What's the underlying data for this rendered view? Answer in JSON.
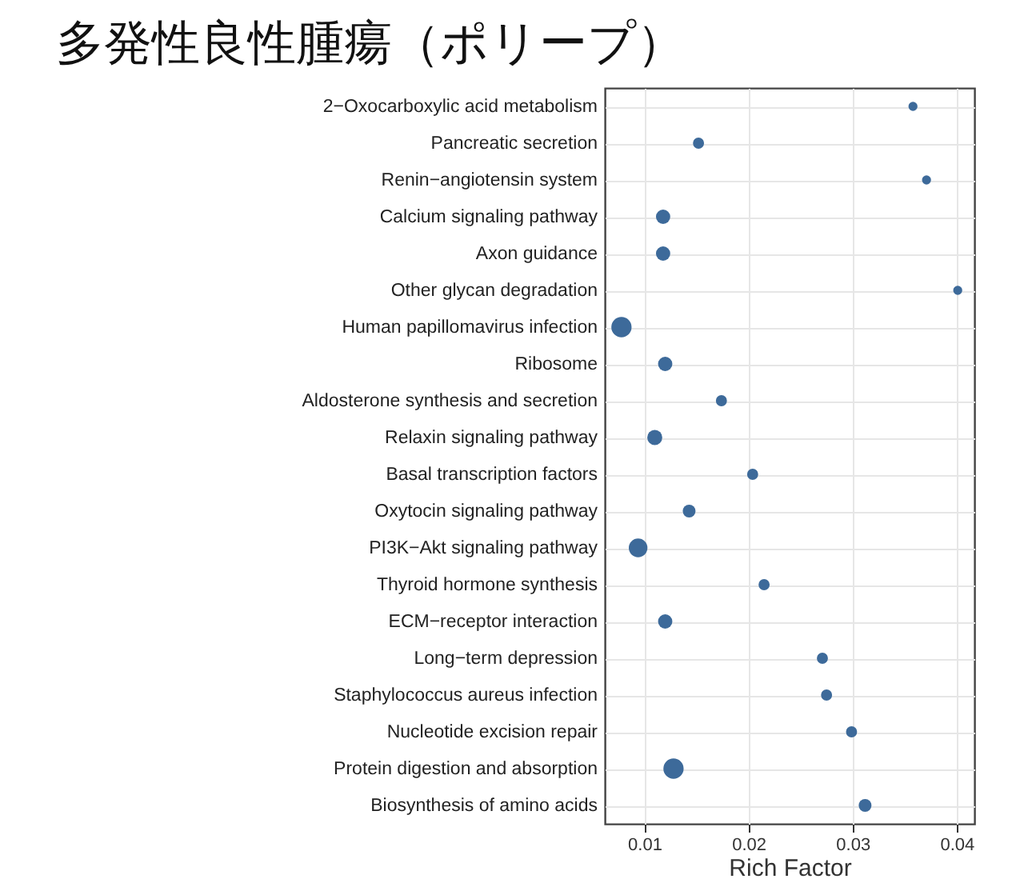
{
  "chart_data": {
    "type": "bubble",
    "title": "多発性良性腫瘍（ポリープ）",
    "xlabel": "Rich Factor",
    "orientation": "horizontal",
    "categories": [
      "2−Oxocarboxylic acid metabolism",
      "Pancreatic secretion",
      "Renin−angiotensin system",
      "Calcium signaling pathway",
      "Axon guidance",
      "Other glycan degradation",
      "Human papillomavirus infection",
      "Ribosome",
      "Aldosterone synthesis and secretion",
      "Relaxin signaling pathway",
      "Basal transcription factors",
      "Oxytocin signaling pathway",
      "PI3K−Akt signaling pathway",
      "Thyroid hormone synthesis",
      "ECM−receptor interaction",
      "Long−term depression",
      "Staphylococcus aureus infection",
      "Nucleotide excision repair",
      "Protein digestion and absorption",
      "Biosynthesis of amino acids"
    ],
    "values": [
      0.0358,
      0.0152,
      0.0371,
      0.0118,
      0.0118,
      0.0401,
      0.0078,
      0.012,
      0.0174,
      0.011,
      0.0204,
      0.0143,
      0.0094,
      0.0215,
      0.012,
      0.0271,
      0.0275,
      0.0299,
      0.0128,
      0.0312
    ],
    "sizes": [
      0.2,
      0.3,
      0.2,
      0.5,
      0.5,
      0.2,
      1,
      0.5,
      0.3,
      0.55,
      0.3,
      0.4,
      0.85,
      0.3,
      0.5,
      0.3,
      0.3,
      0.3,
      1,
      0.4
    ],
    "color": "#3d6a9a",
    "xlim": [
      0.0062,
      0.0417
    ],
    "xticks": [
      0.01,
      0.02,
      0.03,
      0.04
    ],
    "grid": true
  }
}
